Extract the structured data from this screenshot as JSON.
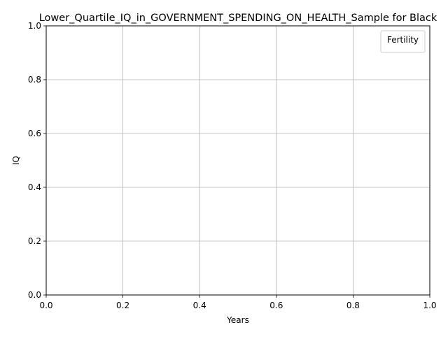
{
  "chart_data": {
    "type": "line",
    "title": "Lower_Quartile_IQ_in_GOVERNMENT_SPENDING_ON_HEALTH_Sample for Black",
    "xlabel": "Years",
    "ylabel": "IQ",
    "xlim": [
      0.0,
      1.0
    ],
    "ylim": [
      0.0,
      1.0
    ],
    "x_ticks": [
      "0.0",
      "0.2",
      "0.4",
      "0.6",
      "0.8",
      "1.0"
    ],
    "y_ticks": [
      "0.0",
      "0.2",
      "0.4",
      "0.6",
      "0.8",
      "1.0"
    ],
    "grid": true,
    "legend": {
      "title": "Fertility",
      "placement": "top-right",
      "entries": []
    },
    "series": [],
    "colors": {
      "grid": "#b0b0b0",
      "axis": "#000000",
      "background": "#ffffff",
      "legend_border": "#cccccc"
    }
  }
}
